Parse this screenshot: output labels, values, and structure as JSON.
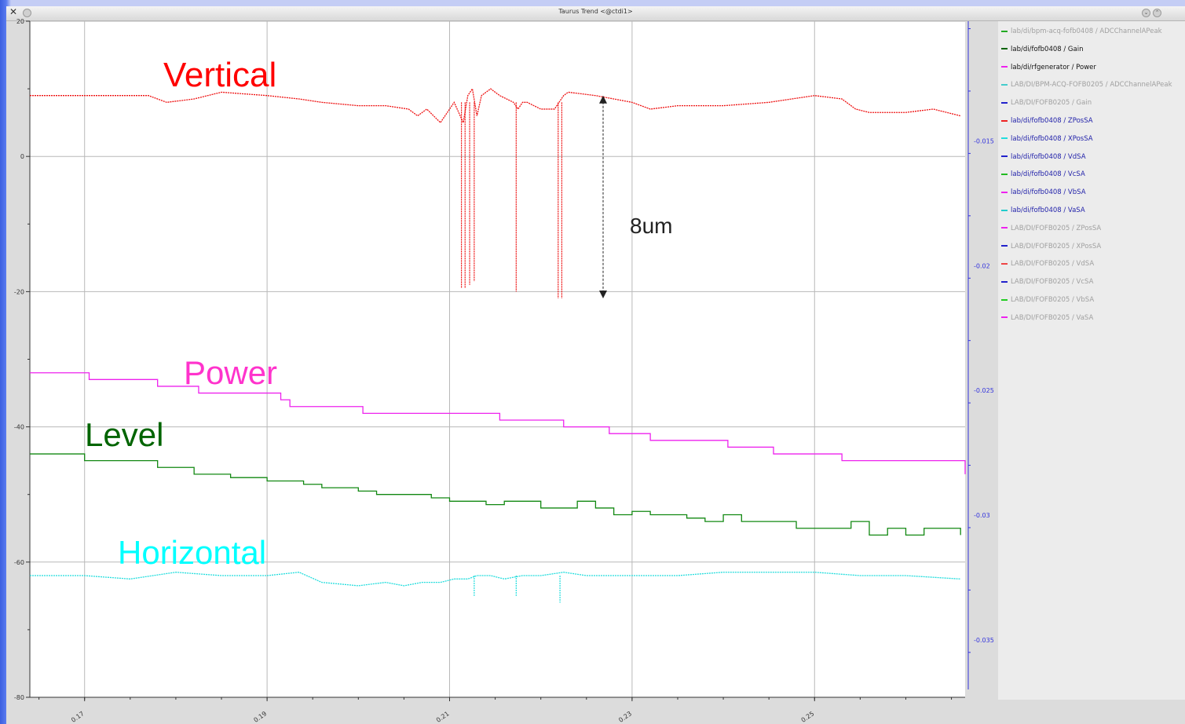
{
  "window": {
    "title": "Taurus Trend <@ctdi1>",
    "close_glyph": "✕",
    "minimize_glyph": "⌄",
    "maximize_glyph": "⌃"
  },
  "icons": {
    "close": "close-x-icon",
    "app": "app-dot-icon",
    "minimize": "minimize-icon",
    "maximize": "maximize-icon"
  },
  "legend": {
    "items": [
      {
        "label": "lab/di/bpm-acq-fofb0408 / ADCChannelAPeak",
        "color": "#22aa22",
        "text_color": "#a0a0a0",
        "dashed": false
      },
      {
        "label": "lab/di/fofb0408 / Gain",
        "color": "#006400",
        "text_color": "#111111",
        "dashed": false
      },
      {
        "label": "lab/di/rfgenerator / Power",
        "color": "#ee22ee",
        "text_color": "#111111",
        "dashed": false
      },
      {
        "label": "LAB/DI/BPM-ACQ-FOFB0205 / ADCChannelAPeak",
        "color": "#44cccc",
        "text_color": "#a0a0a0",
        "dashed": false
      },
      {
        "label": "LAB/DI/FOFB0205 / Gain",
        "color": "#2222cc",
        "text_color": "#a0a0a0",
        "dashed": false
      },
      {
        "label": "lab/di/fofb0408 / ZPosSA",
        "color": "#ee2222",
        "text_color": "#2222aa",
        "dashed": true
      },
      {
        "label": "lab/di/fofb0408 / XPosSA",
        "color": "#22dddd",
        "text_color": "#2222aa",
        "dashed": true
      },
      {
        "label": "lab/di/fofb0408 / VdSA",
        "color": "#2222cc",
        "text_color": "#2222aa",
        "dashed": false
      },
      {
        "label": "lab/di/fofb0408 / VcSA",
        "color": "#22bb22",
        "text_color": "#2222aa",
        "dashed": false
      },
      {
        "label": "lab/di/fofb0408 / VbSA",
        "color": "#ee22ee",
        "text_color": "#2222aa",
        "dashed": false
      },
      {
        "label": "lab/di/fofb0408 / VaSA",
        "color": "#22cccc",
        "text_color": "#2222aa",
        "dashed": false
      },
      {
        "label": "LAB/DI/FOFB0205 / ZPosSA",
        "color": "#ee22ee",
        "text_color": "#a0a0a0",
        "dashed": true
      },
      {
        "label": "LAB/DI/FOFB0205 / XPosSA",
        "color": "#2222cc",
        "text_color": "#a0a0a0",
        "dashed": true
      },
      {
        "label": "LAB/DI/FOFB0205 / VdSA",
        "color": "#ee4444",
        "text_color": "#a0a0a0",
        "dashed": false
      },
      {
        "label": "LAB/DI/FOFB0205 / VcSA",
        "color": "#2222cc",
        "text_color": "#a0a0a0",
        "dashed": false
      },
      {
        "label": "LAB/DI/FOFB0205 / VbSA",
        "color": "#22cc22",
        "text_color": "#a0a0a0",
        "dashed": false
      },
      {
        "label": "LAB/DI/FOFB0205 / VaSA",
        "color": "#ee22ee",
        "text_color": "#a0a0a0",
        "dashed": false
      }
    ]
  },
  "chart_data": {
    "type": "line",
    "title": "Taurus Trend <@ctdi1>",
    "xlabel": "",
    "ylabel": "",
    "xlim": [
      0.164,
      0.2665
    ],
    "ylim": [
      -80,
      20
    ],
    "x_ticks": [
      0.17,
      0.19,
      0.21,
      0.23,
      0.25
    ],
    "x_tick_labels": [
      "0.17",
      "0.19",
      "0.21",
      "0.23",
      "0.25"
    ],
    "y_ticks": [
      20,
      0,
      -20,
      -40,
      -60,
      -80
    ],
    "y_tick_labels": [
      "20",
      "0",
      "-20",
      "-40",
      "-60",
      "-80"
    ],
    "y2lim": [
      -0.0373,
      -0.0102
    ],
    "y2_ticks": [
      -0.015,
      -0.02,
      -0.025,
      -0.03,
      -0.035
    ],
    "y2_tick_labels": [
      "-0.015",
      "-0.02",
      "-0.025",
      "-0.03",
      "-0.035"
    ],
    "grid": true,
    "legend_position": "right",
    "annotations": [
      {
        "text": "Vertical",
        "color": "#ff0000"
      },
      {
        "text": "Power",
        "color": "#ff33cc"
      },
      {
        "text": "Level",
        "color": "#006400"
      },
      {
        "text": "Horizontal",
        "color": "#00ffff"
      },
      {
        "text": "8um",
        "color": "#222222",
        "arrow_from": 9,
        "arrow_to": -21
      }
    ],
    "series": [
      {
        "key": "vertical",
        "color": "#ee1111",
        "dash": "2,1",
        "x": [
          0.164,
          0.17,
          0.177,
          0.179,
          0.182,
          0.185,
          0.19,
          0.1935,
          0.196,
          0.2,
          0.203,
          0.2055,
          0.2065,
          0.2075,
          0.209,
          0.21,
          0.2105,
          0.2115,
          0.212,
          0.2125,
          0.213,
          0.2135,
          0.2145,
          0.2155,
          0.217,
          0.2175,
          0.218,
          0.2185,
          0.22,
          0.2215,
          0.222,
          0.2225,
          0.223,
          0.226,
          0.23,
          0.232,
          0.235,
          0.24,
          0.245,
          0.25,
          0.253,
          0.2545,
          0.256,
          0.26,
          0.263,
          0.266
        ],
        "y": [
          9,
          9,
          9,
          8,
          8.5,
          9.5,
          9,
          8.5,
          8,
          7.5,
          7.5,
          7,
          6,
          7,
          5,
          7,
          8,
          5,
          9,
          10,
          6,
          9,
          10,
          9,
          8,
          7,
          8,
          8,
          7,
          7,
          8,
          9,
          9.5,
          9,
          8,
          7,
          7.5,
          7.5,
          8,
          9,
          8.5,
          7,
          6.5,
          6.5,
          7,
          6
        ],
        "spikes": [
          {
            "x": 0.2113,
            "y": -19.5
          },
          {
            "x": 0.2117,
            "y": -19.5
          },
          {
            "x": 0.2122,
            "y": -19
          },
          {
            "x": 0.2127,
            "y": -18.5
          },
          {
            "x": 0.2173,
            "y": -20
          },
          {
            "x": 0.2219,
            "y": -21
          },
          {
            "x": 0.2223,
            "y": -21
          }
        ]
      },
      {
        "key": "power",
        "color": "#ee22ee",
        "step": true,
        "x": [
          0.164,
          0.1705,
          0.175,
          0.178,
          0.1825,
          0.187,
          0.1915,
          0.1925,
          0.2005,
          0.207,
          0.2155,
          0.2225,
          0.2275,
          0.232,
          0.2405,
          0.2455,
          0.253,
          0.2665
        ],
        "y": [
          -32,
          -33,
          -33,
          -34,
          -35,
          -35,
          -36,
          -37,
          -38,
          -38,
          -39,
          -40,
          -41,
          -42,
          -43,
          -44,
          -45,
          -47
        ]
      },
      {
        "key": "level",
        "color": "#118811",
        "step": true,
        "x": [
          0.164,
          0.17,
          0.176,
          0.178,
          0.18,
          0.182,
          0.184,
          0.186,
          0.188,
          0.19,
          0.192,
          0.194,
          0.196,
          0.198,
          0.2,
          0.202,
          0.204,
          0.206,
          0.208,
          0.21,
          0.212,
          0.214,
          0.216,
          0.218,
          0.22,
          0.222,
          0.224,
          0.226,
          0.228,
          0.23,
          0.232,
          0.234,
          0.236,
          0.238,
          0.24,
          0.242,
          0.244,
          0.246,
          0.248,
          0.25,
          0.252,
          0.254,
          0.256,
          0.258,
          0.26,
          0.262,
          0.264,
          0.266
        ],
        "y": [
          -44,
          -45,
          -45,
          -46,
          -46,
          -47,
          -47,
          -47.5,
          -47.5,
          -48,
          -48,
          -48.5,
          -49,
          -49,
          -49.5,
          -50,
          -50,
          -50,
          -50.5,
          -51,
          -51,
          -51.5,
          -51,
          -51,
          -52,
          -52,
          -51,
          -52,
          -53,
          -52.5,
          -53,
          -53,
          -53.5,
          -54,
          -53,
          -54,
          -54,
          -54,
          -55,
          -55,
          -55,
          -54,
          -56,
          -55,
          -56,
          -55,
          -55,
          -56
        ]
      },
      {
        "key": "horizontal",
        "color": "#22dddd",
        "dash": "2,1",
        "x": [
          0.164,
          0.17,
          0.175,
          0.18,
          0.185,
          0.19,
          0.1935,
          0.196,
          0.2,
          0.203,
          0.205,
          0.207,
          0.209,
          0.2105,
          0.212,
          0.213,
          0.2145,
          0.216,
          0.218,
          0.22,
          0.2225,
          0.225,
          0.23,
          0.235,
          0.24,
          0.245,
          0.25,
          0.255,
          0.26,
          0.266
        ],
        "y": [
          -62,
          -62,
          -62.5,
          -61.5,
          -62,
          -62,
          -61.5,
          -63,
          -63.5,
          -63,
          -63.5,
          -63,
          -63,
          -62.5,
          -62.5,
          -62,
          -62,
          -62.5,
          -62,
          -62,
          -61.5,
          -62,
          -62,
          -62,
          -61.5,
          -61.5,
          -61.5,
          -62,
          -62,
          -62.5
        ],
        "spikes": [
          {
            "x": 0.2127,
            "y": -65
          },
          {
            "x": 0.2173,
            "y": -65
          },
          {
            "x": 0.2221,
            "y": -66
          }
        ]
      }
    ]
  }
}
